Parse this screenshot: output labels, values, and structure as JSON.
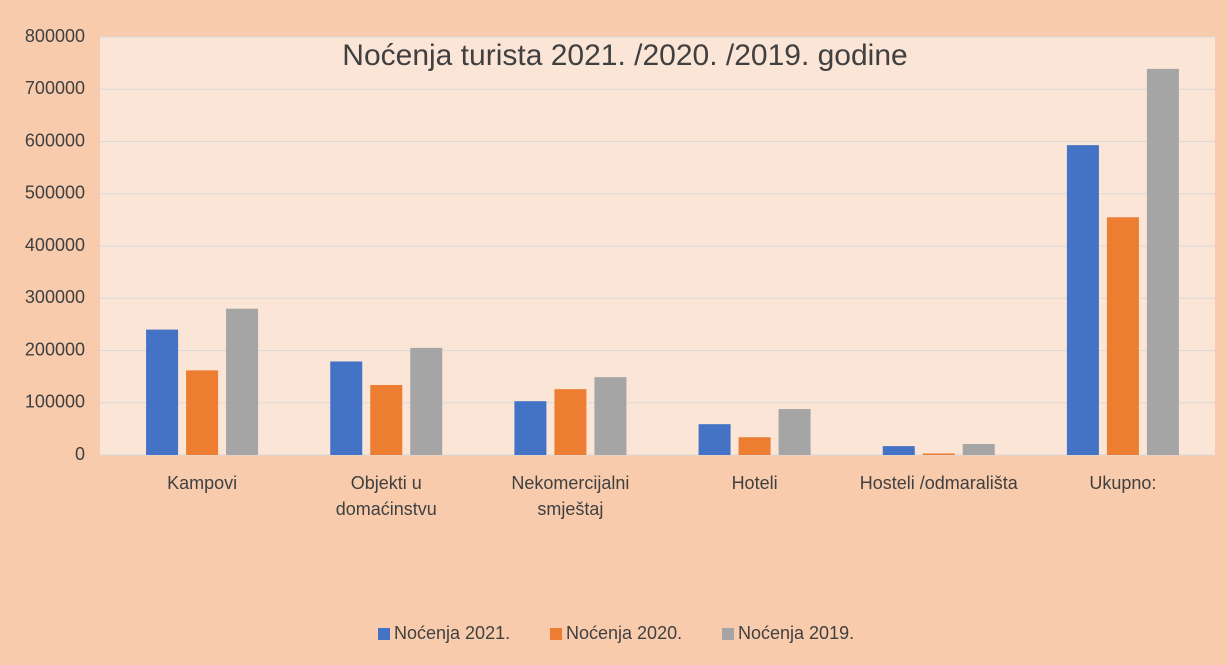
{
  "chart_data": {
    "type": "bar",
    "title": "Noćenja turista 2021. /2020. /2019. godine",
    "categories": [
      "Kampovi",
      "Objekti u domaćinstvu",
      "Nekomercijalni smještaj",
      "Hoteli",
      "Hosteli /odmarališta",
      "Ukupno:"
    ],
    "series": [
      {
        "name": "Noćenja 2021.",
        "color": "#4472c4",
        "values": [
          240000,
          179000,
          103000,
          59000,
          17000,
          593000
        ]
      },
      {
        "name": "Noćenja 2020.",
        "color": "#ed7d31",
        "values": [
          162000,
          134000,
          126000,
          34000,
          3000,
          455000
        ]
      },
      {
        "name": "Noćenja 2019.",
        "color": "#a5a5a5",
        "values": [
          280000,
          205000,
          149000,
          88000,
          21000,
          739000
        ]
      }
    ],
    "ylim": [
      0,
      800000
    ],
    "yticks": [
      0,
      100000,
      200000,
      300000,
      400000,
      500000,
      600000,
      700000,
      800000
    ],
    "grid": true,
    "legend": "bottom"
  }
}
